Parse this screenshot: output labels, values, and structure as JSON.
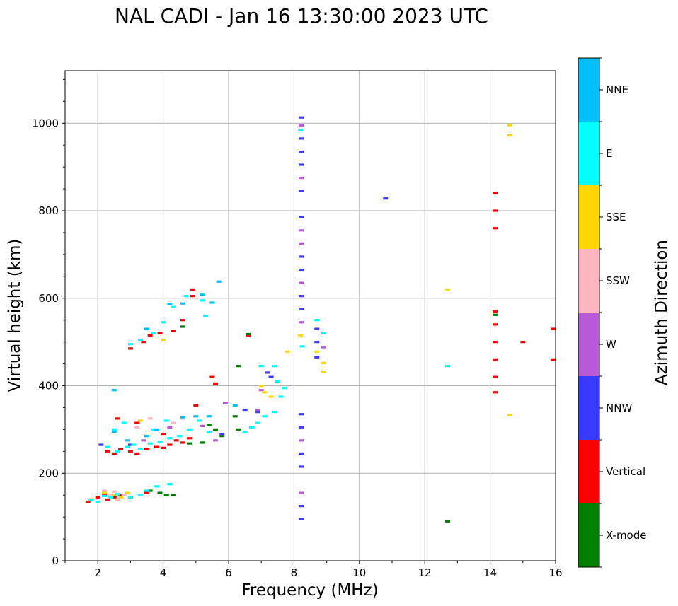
{
  "chart_data": {
    "type": "scatter",
    "title": "NAL CADI - Jan 16 13:30:00 2023 UTC",
    "xlabel": "Frequency (MHz)",
    "ylabel": "Virtual height (km)",
    "xlim": [
      1,
      16
    ],
    "ylim": [
      0,
      1120
    ],
    "xticks": [
      2,
      4,
      6,
      8,
      10,
      12,
      14,
      16
    ],
    "yticks": [
      0,
      200,
      400,
      600,
      800,
      1000
    ],
    "grid": true,
    "colorbar": {
      "label": "Azimuth Direction",
      "categories": [
        "X-mode",
        "Vertical",
        "NNW",
        "W",
        "SSW",
        "SSE",
        "E",
        "NNE"
      ],
      "colors": [
        "#008000",
        "#ff0000",
        "#3a3aff",
        "#b75ad7",
        "#ffb6c1",
        "#ffd700",
        "#00ffff",
        "#00bfff"
      ]
    },
    "series": [
      {
        "name": "Vertical",
        "color": "#ff0000",
        "points": [
          [
            1.7,
            135
          ],
          [
            1.8,
            140
          ],
          [
            2.0,
            145
          ],
          [
            2.2,
            150
          ],
          [
            2.3,
            140
          ],
          [
            2.5,
            145
          ],
          [
            2.7,
            150
          ],
          [
            3.0,
            145
          ],
          [
            3.5,
            155
          ],
          [
            3.9,
            155
          ],
          [
            2.3,
            250
          ],
          [
            2.5,
            245
          ],
          [
            2.7,
            255
          ],
          [
            3.0,
            250
          ],
          [
            3.2,
            245
          ],
          [
            3.5,
            255
          ],
          [
            3.8,
            260
          ],
          [
            4.0,
            258
          ],
          [
            4.2,
            265
          ],
          [
            4.4,
            275
          ],
          [
            4.6,
            270
          ],
          [
            4.8,
            280
          ],
          [
            2.6,
            325
          ],
          [
            3.2,
            315
          ],
          [
            4.0,
            290
          ],
          [
            5.0,
            355
          ],
          [
            5.5,
            420
          ],
          [
            5.6,
            405
          ],
          [
            6.6,
            515
          ],
          [
            3.0,
            485
          ],
          [
            3.4,
            500
          ],
          [
            3.6,
            515
          ],
          [
            3.9,
            520
          ],
          [
            4.3,
            525
          ],
          [
            4.6,
            550
          ],
          [
            4.9,
            605
          ],
          [
            4.9,
            620
          ],
          [
            14.15,
            570
          ],
          [
            14.15,
            540
          ],
          [
            14.15,
            500
          ],
          [
            14.15,
            460
          ],
          [
            14.15,
            420
          ],
          [
            14.15,
            385
          ],
          [
            14.15,
            800
          ],
          [
            14.15,
            760
          ],
          [
            14.15,
            840
          ],
          [
            15.0,
            500
          ],
          [
            16.0,
            530
          ],
          [
            16.0,
            460
          ]
        ]
      },
      {
        "name": "X-mode",
        "color": "#008000",
        "points": [
          [
            3.6,
            160
          ],
          [
            3.9,
            155
          ],
          [
            4.1,
            150
          ],
          [
            4.3,
            150
          ],
          [
            4.8,
            268
          ],
          [
            5.2,
            270
          ],
          [
            5.4,
            310
          ],
          [
            5.6,
            300
          ],
          [
            5.8,
            285
          ],
          [
            6.2,
            330
          ],
          [
            6.3,
            300
          ],
          [
            6.3,
            445
          ],
          [
            6.6,
            518
          ],
          [
            4.6,
            535
          ],
          [
            12.7,
            90
          ],
          [
            14.15,
            562
          ]
        ]
      },
      {
        "name": "NNW",
        "color": "#3a3aff",
        "points": [
          [
            2.1,
            265
          ],
          [
            3.0,
            265
          ],
          [
            5.8,
            290
          ],
          [
            6.5,
            345
          ],
          [
            6.9,
            340
          ],
          [
            7.2,
            430
          ],
          [
            7.3,
            420
          ],
          [
            7.5,
            410
          ],
          [
            8.22,
            1013
          ],
          [
            8.22,
            965
          ],
          [
            8.22,
            935
          ],
          [
            8.22,
            905
          ],
          [
            8.22,
            845
          ],
          [
            8.22,
            785
          ],
          [
            8.22,
            695
          ],
          [
            8.22,
            665
          ],
          [
            8.22,
            605
          ],
          [
            8.22,
            575
          ],
          [
            8.22,
            335
          ],
          [
            8.22,
            305
          ],
          [
            8.22,
            245
          ],
          [
            8.22,
            215
          ],
          [
            8.22,
            125
          ],
          [
            8.22,
            95
          ],
          [
            8.7,
            530
          ],
          [
            8.7,
            500
          ],
          [
            8.7,
            465
          ],
          [
            10.8,
            828
          ]
        ]
      },
      {
        "name": "W",
        "color": "#b75ad7",
        "points": [
          [
            3.4,
            275
          ],
          [
            4.2,
            305
          ],
          [
            5.2,
            308
          ],
          [
            5.6,
            275
          ],
          [
            5.9,
            360
          ],
          [
            6.9,
            345
          ],
          [
            7.0,
            390
          ],
          [
            8.22,
            995
          ],
          [
            8.22,
            875
          ],
          [
            8.22,
            755
          ],
          [
            8.22,
            725
          ],
          [
            8.22,
            635
          ],
          [
            8.22,
            545
          ],
          [
            8.22,
            275
          ],
          [
            8.22,
            155
          ],
          [
            8.9,
            488
          ]
        ]
      },
      {
        "name": "SSW",
        "color": "#ffb6c1",
        "points": [
          [
            2.2,
            160
          ],
          [
            2.4,
            150
          ],
          [
            2.5,
            158
          ],
          [
            2.6,
            140
          ],
          [
            2.8,
            150
          ],
          [
            3.2,
            305
          ],
          [
            3.6,
            325
          ],
          [
            4.3,
            315
          ],
          [
            4.6,
            325
          ]
        ]
      },
      {
        "name": "SSE",
        "color": "#ffd700",
        "points": [
          [
            1.8,
            140
          ],
          [
            2.2,
            155
          ],
          [
            2.5,
            150
          ],
          [
            2.7,
            145
          ],
          [
            2.9,
            155
          ],
          [
            3.3,
            320
          ],
          [
            4.0,
            505
          ],
          [
            7.0,
            400
          ],
          [
            7.1,
            385
          ],
          [
            7.3,
            375
          ],
          [
            7.8,
            478
          ],
          [
            8.2,
            515
          ],
          [
            8.7,
            478
          ],
          [
            8.9,
            452
          ],
          [
            8.9,
            432
          ],
          [
            12.7,
            620
          ],
          [
            14.6,
            995
          ],
          [
            14.6,
            972
          ],
          [
            14.6,
            333
          ]
        ]
      },
      {
        "name": "E",
        "color": "#00ffff",
        "points": [
          [
            1.8,
            138
          ],
          [
            2.0,
            135
          ],
          [
            2.2,
            148
          ],
          [
            2.4,
            145
          ],
          [
            2.6,
            152
          ],
          [
            3.0,
            145
          ],
          [
            3.3,
            150
          ],
          [
            3.5,
            160
          ],
          [
            3.8,
            170
          ],
          [
            4.2,
            175
          ],
          [
            2.3,
            260
          ],
          [
            2.6,
            250
          ],
          [
            2.9,
            260
          ],
          [
            3.1,
            265
          ],
          [
            3.3,
            255
          ],
          [
            3.6,
            268
          ],
          [
            3.9,
            272
          ],
          [
            4.2,
            280
          ],
          [
            4.5,
            285
          ],
          [
            4.8,
            300
          ],
          [
            5.1,
            320
          ],
          [
            5.4,
            295
          ],
          [
            2.5,
            300
          ],
          [
            2.8,
            315
          ],
          [
            3.7,
            300
          ],
          [
            4.1,
            320
          ],
          [
            3.0,
            495
          ],
          [
            3.3,
            505
          ],
          [
            3.7,
            520
          ],
          [
            4.0,
            545
          ],
          [
            4.3,
            580
          ],
          [
            4.7,
            605
          ],
          [
            5.2,
            595
          ],
          [
            5.3,
            560
          ],
          [
            6.5,
            295
          ],
          [
            6.7,
            305
          ],
          [
            6.9,
            315
          ],
          [
            7.1,
            330
          ],
          [
            7.4,
            340
          ],
          [
            7.6,
            375
          ],
          [
            7.7,
            395
          ],
          [
            7.5,
            410
          ],
          [
            7.4,
            445
          ],
          [
            7.0,
            445
          ],
          [
            8.2,
            985
          ],
          [
            8.25,
            490
          ],
          [
            8.7,
            550
          ],
          [
            8.9,
            520
          ],
          [
            12.7,
            445
          ]
        ]
      },
      {
        "name": "NNE",
        "color": "#00bfff",
        "points": [
          [
            2.5,
            390
          ],
          [
            2.5,
            295
          ],
          [
            2.9,
            275
          ],
          [
            3.5,
            285
          ],
          [
            3.8,
            300
          ],
          [
            4.6,
            328
          ],
          [
            5.0,
            330
          ],
          [
            5.4,
            330
          ],
          [
            6.2,
            355
          ],
          [
            5.2,
            608
          ],
          [
            5.5,
            590
          ],
          [
            5.7,
            638
          ],
          [
            4.2,
            587
          ],
          [
            4.6,
            588
          ],
          [
            3.5,
            530
          ]
        ]
      }
    ]
  }
}
